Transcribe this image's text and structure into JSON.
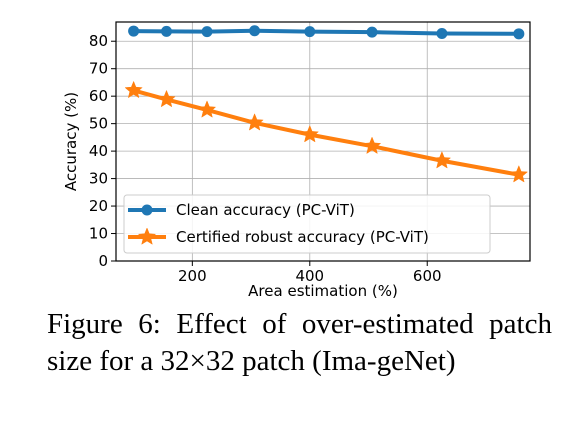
{
  "chart_data": {
    "type": "line",
    "xlabel": "Area estimation (%)",
    "ylabel": "Accuracy (%)",
    "xlim": [
      70,
      775
    ],
    "ylim": [
      0,
      87
    ],
    "xticks": [
      200,
      400,
      600
    ],
    "yticks": [
      0,
      10,
      20,
      30,
      40,
      50,
      60,
      70,
      80
    ],
    "grid": true,
    "legend_position": "lower-left",
    "x": [
      100,
      156,
      225,
      306,
      400,
      506,
      625,
      756
    ],
    "series": [
      {
        "name": "Clean accuracy (PC-ViT)",
        "color": "#1f77b4",
        "marker": "circle",
        "values": [
          83.7,
          83.6,
          83.5,
          83.8,
          83.5,
          83.3,
          82.8,
          82.7
        ]
      },
      {
        "name": "Certified robust accuracy (PC-ViT)",
        "color": "#ff7f0e",
        "marker": "star",
        "values": [
          62.1,
          58.8,
          55.0,
          50.3,
          46.0,
          41.8,
          36.5,
          31.4
        ]
      }
    ]
  },
  "caption": "Figure 6: Effect of over-estimated patch size for a 32×32 patch (Ima-geNet)"
}
